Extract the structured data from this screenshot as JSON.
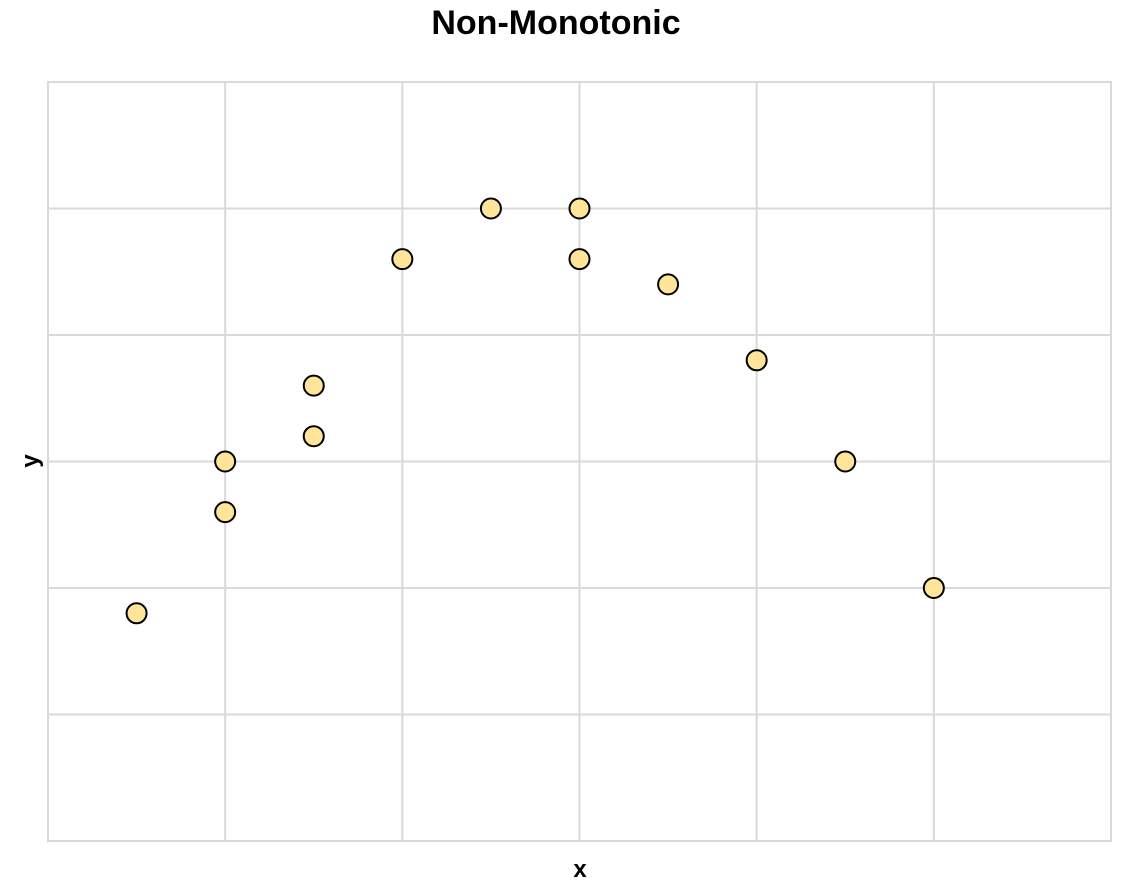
{
  "chart_data": {
    "type": "scatter",
    "title": "Non-Monotonic",
    "xlabel": "x",
    "ylabel": "y",
    "xlim": [
      0,
      6
    ],
    "ylim": [
      0,
      6
    ],
    "grid": true,
    "x_gridlines": [
      1,
      2,
      3,
      4,
      5
    ],
    "y_gridlines": [
      1,
      2,
      3,
      4,
      5
    ],
    "show_tick_labels": false,
    "point_fill": "#ffe599",
    "point_stroke": "#000000",
    "grid_color": "#d9d9d9",
    "points": [
      {
        "x": 0.5,
        "y": 1.8
      },
      {
        "x": 1.0,
        "y": 2.6
      },
      {
        "x": 1.0,
        "y": 3.0
      },
      {
        "x": 1.5,
        "y": 3.2
      },
      {
        "x": 1.5,
        "y": 3.6
      },
      {
        "x": 2.0,
        "y": 4.6
      },
      {
        "x": 2.5,
        "y": 5.0
      },
      {
        "x": 3.0,
        "y": 5.0
      },
      {
        "x": 3.0,
        "y": 4.6
      },
      {
        "x": 3.5,
        "y": 4.4
      },
      {
        "x": 4.0,
        "y": 3.8
      },
      {
        "x": 4.5,
        "y": 3.0
      },
      {
        "x": 5.0,
        "y": 2.0
      }
    ]
  }
}
